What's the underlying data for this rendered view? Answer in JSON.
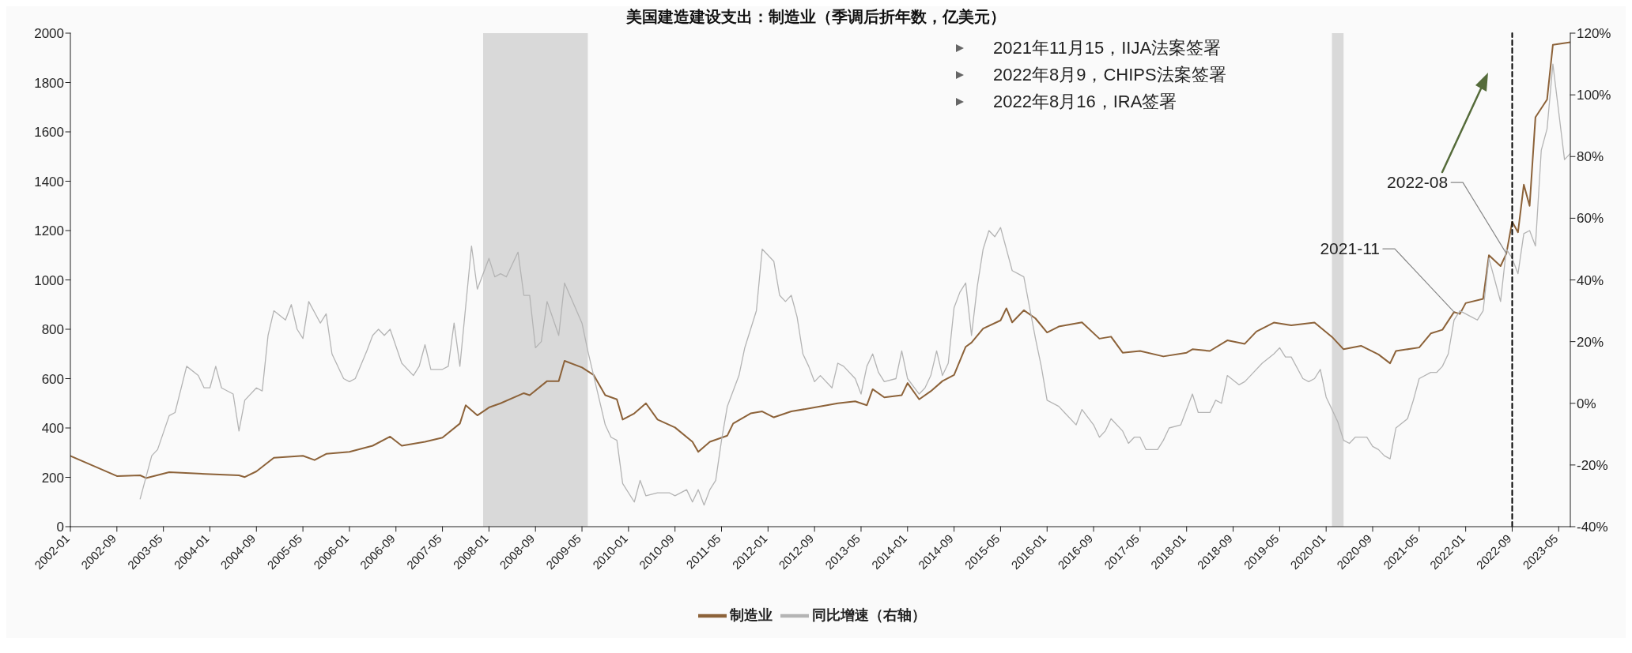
{
  "chart_data": {
    "type": "line",
    "title": "美国建造建设支出：制造业（季调后折年数，亿美元）",
    "series": [
      {
        "name": "制造业",
        "color": "#8c6239",
        "x": [
          "2002-01",
          "2002-05",
          "2002-09",
          "2003-01",
          "2003-02",
          "2003-06",
          "2004-01",
          "2004-06",
          "2004-07",
          "2004-09",
          "2004-12",
          "2005-05",
          "2005-07",
          "2005-09",
          "2006-01",
          "2006-05",
          "2006-08",
          "2006-10",
          "2007-02",
          "2007-05",
          "2007-08",
          "2007-09",
          "2007-11",
          "2008-01",
          "2008-03",
          "2008-07",
          "2008-08",
          "2008-11",
          "2009-01",
          "2009-02",
          "2009-05",
          "2009-07",
          "2009-09",
          "2009-11",
          "2009-12",
          "2010-02",
          "2010-04",
          "2010-06",
          "2010-09",
          "2010-12",
          "2011-01",
          "2011-03",
          "2011-06",
          "2011-07",
          "2011-10",
          "2011-12",
          "2012-02",
          "2012-05",
          "2012-09",
          "2013-01",
          "2013-04",
          "2013-06",
          "2013-07",
          "2013-09",
          "2013-12",
          "2014-01",
          "2014-03",
          "2014-05",
          "2014-07",
          "2014-09",
          "2014-11",
          "2014-12",
          "2015-02",
          "2015-05",
          "2015-06",
          "2015-07",
          "2015-09",
          "2015-11",
          "2016-01",
          "2016-03",
          "2016-07",
          "2016-10",
          "2016-12",
          "2017-02",
          "2017-05",
          "2017-09",
          "2018-01",
          "2018-02",
          "2018-05",
          "2018-08",
          "2018-11",
          "2019-01",
          "2019-04",
          "2019-07",
          "2019-11",
          "2020-02",
          "2020-04",
          "2020-07",
          "2020-10",
          "2020-12",
          "2021-01",
          "2021-05",
          "2021-07",
          "2021-09",
          "2021-11",
          "2021-12",
          "2022-01",
          "2022-04",
          "2022-05",
          "2022-07",
          "2022-08",
          "2022-09",
          "2022-10",
          "2022-11",
          "2022-12",
          "2023-01",
          "2023-03",
          "2023-04",
          "2023-07"
        ],
        "values": [
          287,
          246,
          205,
          208,
          197,
          221,
          213,
          208,
          201,
          224,
          279,
          287,
          270,
          295,
          303,
          328,
          365,
          328,
          344,
          361,
          418,
          492,
          451,
          483,
          500,
          541,
          533,
          590,
          590,
          672,
          645,
          615,
          533,
          516,
          434,
          459,
          500,
          434,
          402,
          344,
          303,
          344,
          369,
          418,
          459,
          467,
          443,
          467,
          483,
          500,
          508,
          492,
          557,
          524,
          533,
          582,
          516,
          549,
          590,
          615,
          729,
          746,
          803,
          836,
          885,
          828,
          877,
          844,
          787,
          811,
          828,
          762,
          770,
          705,
          712,
          690,
          705,
          719,
          712,
          755,
          741,
          791,
          827,
          816,
          827,
          769,
          719,
          733,
          698,
          662,
          712,
          726,
          783,
          798,
          870,
          862,
          906,
          923,
          1100,
          1056,
          1107,
          1236,
          1193,
          1386,
          1300,
          1659,
          1731,
          1953,
          1963
        ]
      },
      {
        "name": "同比增速（右轴）",
        "color": "#b4b4b4",
        "axis": "y2",
        "x": [
          "2003-01",
          "2003-03",
          "2003-04",
          "2003-06",
          "2003-07",
          "2003-09",
          "2003-11",
          "2003-12",
          "2004-01",
          "2004-02",
          "2004-03",
          "2004-05",
          "2004-06",
          "2004-07",
          "2004-09",
          "2004-10",
          "2004-11",
          "2004-12",
          "2005-02",
          "2005-03",
          "2005-04",
          "2005-05",
          "2005-06",
          "2005-08",
          "2005-09",
          "2005-10",
          "2005-12",
          "2006-01",
          "2006-02",
          "2006-04",
          "2006-05",
          "2006-06",
          "2006-07",
          "2006-08",
          "2006-10",
          "2006-12",
          "2007-01",
          "2007-02",
          "2007-03",
          "2007-05",
          "2007-06",
          "2007-07",
          "2007-08",
          "2007-10",
          "2007-11",
          "2008-01",
          "2008-02",
          "2008-03",
          "2008-04",
          "2008-06",
          "2008-07",
          "2008-08",
          "2008-09",
          "2008-10",
          "2008-11",
          "2009-01",
          "2009-02",
          "2009-05",
          "2009-06",
          "2009-07",
          "2009-09",
          "2009-10",
          "2009-11",
          "2009-12",
          "2010-02",
          "2010-03",
          "2010-04",
          "2010-06",
          "2010-08",
          "2010-09",
          "2010-11",
          "2010-12",
          "2011-01",
          "2011-02",
          "2011-03",
          "2011-04",
          "2011-05",
          "2011-06",
          "2011-08",
          "2011-09",
          "2011-10",
          "2011-11",
          "2011-12",
          "2012-02",
          "2012-03",
          "2012-04",
          "2012-05",
          "2012-06",
          "2012-07",
          "2012-08",
          "2012-09",
          "2012-10",
          "2012-12",
          "2013-01",
          "2013-02",
          "2013-04",
          "2013-05",
          "2013-06",
          "2013-07",
          "2013-08",
          "2013-09",
          "2013-11",
          "2013-12",
          "2014-01",
          "2014-03",
          "2014-04",
          "2014-05",
          "2014-06",
          "2014-07",
          "2014-08",
          "2014-09",
          "2014-10",
          "2014-11",
          "2014-12",
          "2015-01",
          "2015-02",
          "2015-03",
          "2015-04",
          "2015-05",
          "2015-06",
          "2015-07",
          "2015-08",
          "2015-09",
          "2015-11",
          "2015-12",
          "2016-01",
          "2016-03",
          "2016-04",
          "2016-06",
          "2016-07",
          "2016-09",
          "2016-10",
          "2016-11",
          "2016-12",
          "2017-02",
          "2017-03",
          "2017-04",
          "2017-05",
          "2017-06",
          "2017-08",
          "2017-09",
          "2017-10",
          "2017-12",
          "2018-02",
          "2018-03",
          "2018-05",
          "2018-06",
          "2018-07",
          "2018-08",
          "2018-10",
          "2018-11",
          "2018-12",
          "2019-02",
          "2019-04",
          "2019-05",
          "2019-06",
          "2019-07",
          "2019-09",
          "2019-10",
          "2019-11",
          "2019-12",
          "2020-01",
          "2020-03",
          "2020-04",
          "2020-05",
          "2020-06",
          "2020-08",
          "2020-09",
          "2020-10",
          "2020-11",
          "2020-12",
          "2021-01",
          "2021-03",
          "2021-04",
          "2021-05",
          "2021-07",
          "2021-08",
          "2021-09",
          "2021-10",
          "2021-11",
          "2021-12",
          "2022-02",
          "2022-03",
          "2022-04",
          "2022-05",
          "2022-06",
          "2022-07",
          "2022-08",
          "2022-09",
          "2022-10",
          "2022-11",
          "2022-12",
          "2023-01",
          "2023-02",
          "2023-03",
          "2023-04",
          "2023-06",
          "2023-07"
        ],
        "values": [
          -31,
          -17,
          -15,
          -4,
          -3,
          12,
          9,
          5,
          5,
          12,
          5,
          3,
          -9,
          1,
          5,
          4,
          22,
          30,
          27,
          32,
          24,
          21,
          33,
          26,
          29,
          16,
          8,
          7,
          8,
          17,
          22,
          24,
          22,
          24,
          13,
          9,
          12,
          19,
          11,
          11,
          12,
          26,
          12,
          51,
          37,
          47,
          41,
          42,
          41,
          49,
          35,
          35,
          18,
          20,
          33,
          22,
          39,
          26,
          17,
          9,
          -7,
          -11,
          -12,
          -26,
          -32,
          -25,
          -30,
          -29,
          -29,
          -30,
          -28,
          -32,
          -28,
          -33,
          -28,
          -25,
          -12,
          -1,
          9,
          18,
          24,
          30,
          50,
          46,
          35,
          33,
          35,
          28,
          16,
          12,
          7,
          9,
          5,
          13,
          12,
          8,
          3,
          12,
          16,
          10,
          7,
          8,
          17,
          8,
          3,
          5,
          9,
          17,
          9,
          13,
          31,
          36,
          39,
          22,
          38,
          50,
          56,
          54,
          57,
          50,
          43,
          42,
          41,
          21,
          12,
          1,
          -1,
          -3,
          -7,
          -2,
          -7,
          -11,
          -9,
          -5,
          -9,
          -13,
          -11,
          -11,
          -15,
          -15,
          -12,
          -8,
          -7,
          3,
          -3,
          -3,
          1,
          0,
          9,
          6,
          7,
          9,
          13,
          16,
          18,
          15,
          15,
          8,
          7,
          8,
          11,
          2,
          -6,
          -12,
          -13,
          -11,
          -11,
          -14,
          -15,
          -17,
          -18,
          -8,
          -5,
          1,
          8,
          10,
          10,
          12,
          16,
          27,
          30,
          28,
          27,
          30,
          47,
          40,
          33,
          50,
          47,
          42,
          55,
          56,
          51,
          82,
          89,
          110,
          79,
          81
        ]
      }
    ],
    "xlim": [
      "2002-01",
      "2023-07"
    ],
    "xticks": [
      "2002-01",
      "2002-09",
      "2003-05",
      "2004-01",
      "2004-09",
      "2005-05",
      "2006-01",
      "2006-09",
      "2007-05",
      "2008-01",
      "2008-09",
      "2009-05",
      "2010-01",
      "2010-09",
      "2011-05",
      "2012-01",
      "2012-09",
      "2013-05",
      "2014-01",
      "2014-09",
      "2015-05",
      "2016-01",
      "2016-09",
      "2017-05",
      "2018-01",
      "2018-09",
      "2019-05",
      "2020-01",
      "2020-09",
      "2021-05",
      "2022-01",
      "2022-09",
      "2023-05"
    ],
    "ylim": [
      0,
      2000
    ],
    "yticks": [
      0,
      200,
      400,
      600,
      800,
      1000,
      1200,
      1400,
      1600,
      1800,
      2000
    ],
    "y2lim": [
      -40,
      120
    ],
    "y2ticks": [
      {
        "value": -40,
        "label": "-40%"
      },
      {
        "value": -20,
        "label": "-20%"
      },
      {
        "value": 0,
        "label": "0%"
      },
      {
        "value": 20,
        "label": "20%"
      },
      {
        "value": 40,
        "label": "40%"
      },
      {
        "value": 60,
        "label": "60%"
      },
      {
        "value": 80,
        "label": "80%"
      },
      {
        "value": 100,
        "label": "100%"
      },
      {
        "value": 120,
        "label": "120%"
      }
    ],
    "bands": [
      {
        "axis": "x",
        "from": "2007-12",
        "to": "2009-06",
        "color": "#d9d9d9"
      },
      {
        "axis": "x",
        "from": "2020-02",
        "to": "2020-04",
        "color": "#d9d9d9"
      }
    ],
    "ref_lines": [
      {
        "axis": "x",
        "value": "2022-09",
        "color": "#000000",
        "line_style": "dashed"
      }
    ],
    "annotations": [
      "2021年11月15，IIJA法案签署",
      "2022年8月9，CHIPS法案签署",
      "2022年8月16，IRA签署",
      {
        "text": "2021-11",
        "x": "2021-11",
        "y": 870
      },
      {
        "text": "2022-08",
        "x": "2022-08",
        "y": 1107
      }
    ],
    "legend": "bottom",
    "grid": false,
    "marker": "none",
    "line_style": "solid"
  }
}
